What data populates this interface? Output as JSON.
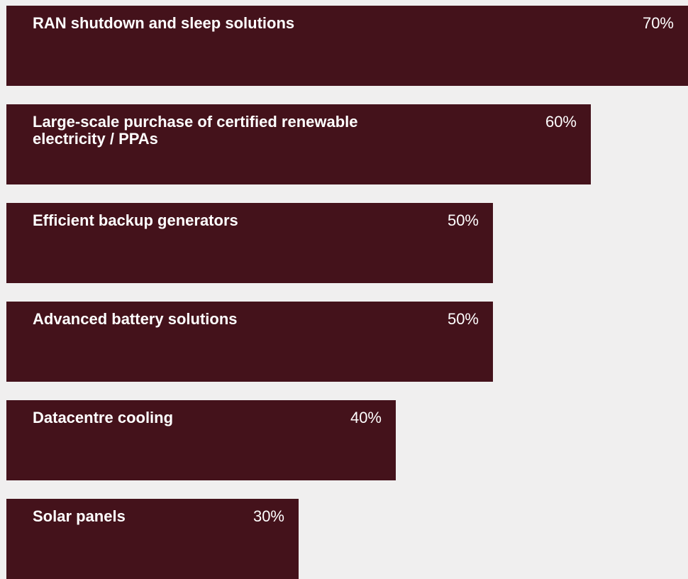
{
  "bar_color": "#44121b",
  "text_color": "#ffffff",
  "background_color": "#f0efef",
  "chart_data": {
    "type": "bar",
    "orientation": "horizontal",
    "categories": [
      "RAN shutdown and sleep solutions",
      "Large-scale purchase of certified renewable electricity / PPAs",
      "Efficient backup generators",
      "Advanced battery solutions",
      "Datacentre cooling",
      "Solar panels"
    ],
    "values": [
      70,
      60,
      50,
      50,
      40,
      30
    ],
    "value_labels": [
      "70%",
      "60%",
      "50%",
      "50%",
      "40%",
      "30%"
    ],
    "xlim": [
      0,
      70
    ],
    "title": "",
    "xlabel": "",
    "ylabel": "",
    "grid": false,
    "legend": "none"
  }
}
